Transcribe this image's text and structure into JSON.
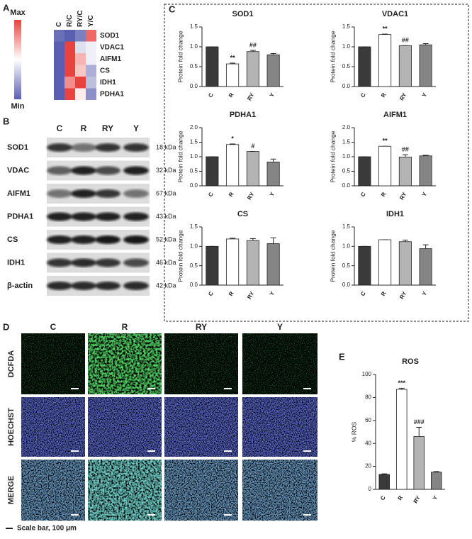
{
  "panels": [
    "A",
    "B",
    "C",
    "D",
    "E"
  ],
  "heatmap": {
    "columns": [
      "C",
      "R/C",
      "RY/C",
      "Y/C"
    ],
    "rows": [
      "SOD1",
      "VDAC1",
      "AIFM1",
      "CS",
      "IDH1",
      "PDHA1"
    ],
    "scale_max": "Max",
    "scale_min": "Min",
    "values": [
      [
        -0.9,
        -1,
        -0.8,
        0.8
      ],
      [
        -1,
        1,
        -0.2,
        -0.1
      ],
      [
        -1,
        1,
        0.4,
        -0.1
      ],
      [
        -1,
        1,
        0.3,
        -0.5
      ],
      [
        -1,
        0.6,
        1,
        -0.4
      ],
      [
        -1,
        1,
        0.1,
        -0.7
      ]
    ]
  },
  "blot": {
    "columns": [
      "C",
      "R",
      "RY",
      "Y"
    ],
    "rows": [
      {
        "name": "SOD1",
        "size": "18 kDa"
      },
      {
        "name": "VDAC",
        "size": "32 kDa"
      },
      {
        "name": "AIFM1",
        "size": "67 kDa"
      },
      {
        "name": "PDHA1",
        "size": "43 kDa"
      },
      {
        "name": "CS",
        "size": "52 kDa"
      },
      {
        "name": "IDH1",
        "size": "46 kDa"
      },
      {
        "name": "β-actin",
        "size": "42 kDa"
      }
    ]
  },
  "chart_data": [
    {
      "type": "bar",
      "title": "SOD1",
      "ylabel": "Protein fold change",
      "categories": [
        "C",
        "R",
        "RY",
        "Y"
      ],
      "values": [
        1.0,
        0.57,
        0.88,
        0.8
      ],
      "errors": [
        0,
        0.02,
        0.03,
        0.03
      ],
      "colors": [
        "#3a3a3a",
        "#ffffff",
        "#b4b4b4",
        "#858585"
      ],
      "annotations": [
        {
          "category": "R",
          "text": "**"
        },
        {
          "category": "RY",
          "text": "##"
        }
      ],
      "ylim": [
        0,
        1.5
      ],
      "yticks": [
        {
          "value": 0,
          "label": "0.0"
        },
        0.5,
        {
          "value": 1,
          "label": "1.0"
        },
        1.5
      ]
    },
    {
      "type": "bar",
      "title": "VDAC1",
      "ylabel": "Protein fold change",
      "categories": [
        "C",
        "R",
        "RY",
        "Y"
      ],
      "values": [
        1.0,
        1.31,
        1.03,
        1.05
      ],
      "errors": [
        0,
        0.01,
        0,
        0.03
      ],
      "colors": [
        "#3a3a3a",
        "#ffffff",
        "#b4b4b4",
        "#858585"
      ],
      "annotations": [
        {
          "category": "R",
          "text": "**"
        },
        {
          "category": "RY",
          "text": "##"
        }
      ],
      "ylim": [
        0,
        1.5
      ],
      "yticks": [
        {
          "value": 0,
          "label": "0.0"
        },
        0.5,
        {
          "value": 1,
          "label": "1.0"
        },
        1.5
      ]
    },
    {
      "type": "bar",
      "title": "PDHA1",
      "ylabel": "Protein fold change",
      "categories": [
        "C",
        "R",
        "RY",
        "Y"
      ],
      "values": [
        1.0,
        1.42,
        1.18,
        0.82
      ],
      "errors": [
        0,
        0.02,
        0,
        0.1
      ],
      "colors": [
        "#3a3a3a",
        "#ffffff",
        "#b4b4b4",
        "#858585"
      ],
      "annotations": [
        {
          "category": "R",
          "text": "*"
        },
        {
          "category": "RY",
          "text": "#"
        }
      ],
      "ylim": [
        0,
        2
      ],
      "yticks": [
        {
          "value": 0,
          "label": "0.0"
        },
        0.5,
        {
          "value": 1,
          "label": "1.0"
        },
        1.5,
        {
          "value": 2,
          "label": "2.0"
        }
      ]
    },
    {
      "type": "bar",
      "title": "AIFM1",
      "ylabel": "Protein fold change",
      "categories": [
        "C",
        "R",
        "RY",
        "Y"
      ],
      "values": [
        1.0,
        1.36,
        0.99,
        1.03
      ],
      "errors": [
        0,
        0,
        0.08,
        0.02
      ],
      "colors": [
        "#3a3a3a",
        "#ffffff",
        "#b4b4b4",
        "#858585"
      ],
      "annotations": [
        {
          "category": "R",
          "text": "**"
        },
        {
          "category": "RY",
          "text": "##"
        }
      ],
      "ylim": [
        0,
        2
      ],
      "yticks": [
        {
          "value": 0,
          "label": "0.0"
        },
        0.5,
        {
          "value": 1,
          "label": "1.0"
        },
        1.5,
        {
          "value": 2,
          "label": "2.0"
        }
      ]
    },
    {
      "type": "bar",
      "title": "CS",
      "ylabel": "Protein fold change",
      "categories": [
        "C",
        "R",
        "RY",
        "Y"
      ],
      "values": [
        1.0,
        1.19,
        1.15,
        1.07
      ],
      "errors": [
        0,
        0.02,
        0.05,
        0.15
      ],
      "colors": [
        "#3a3a3a",
        "#ffffff",
        "#b4b4b4",
        "#858585"
      ],
      "ylim": [
        0,
        1.5
      ],
      "yticks": [
        {
          "value": 0,
          "label": "0.0"
        },
        0.5,
        {
          "value": 1,
          "label": "1.0"
        },
        1.5
      ]
    },
    {
      "type": "bar",
      "title": "IDH1",
      "ylabel": "Protein fold change",
      "categories": [
        "C",
        "R",
        "RY",
        "Y"
      ],
      "values": [
        1.0,
        1.17,
        1.12,
        0.94
      ],
      "errors": [
        0,
        0,
        0.04,
        0.1
      ],
      "colors": [
        "#3a3a3a",
        "#ffffff",
        "#b4b4b4",
        "#858585"
      ],
      "ylim": [
        0,
        1.5
      ],
      "yticks": [
        {
          "value": 0,
          "label": "0.0"
        },
        0.5,
        {
          "value": 1,
          "label": "1.0"
        },
        1.5
      ]
    },
    {
      "type": "bar",
      "title": "ROS",
      "ylabel": "% ROS",
      "categories": [
        "C",
        "R",
        "RY",
        "Y"
      ],
      "values": [
        13,
        87,
        46,
        15
      ],
      "errors": [
        0.5,
        1,
        8,
        0.5
      ],
      "colors": [
        "#3a3a3a",
        "#ffffff",
        "#b4b4b4",
        "#858585"
      ],
      "annotations": [
        {
          "category": "R",
          "text": "***"
        },
        {
          "category": "RY",
          "text": "###"
        }
      ],
      "ylim": [
        0,
        100
      ],
      "yticks": [
        0,
        20,
        40,
        60,
        80,
        100
      ]
    }
  ],
  "microscopy": {
    "columns": [
      "C",
      "R",
      "RY",
      "Y"
    ],
    "rows": [
      "DCFDA",
      "HOECHST",
      "MERGE"
    ],
    "scale_bar": "Scale bar, 100 μm"
  }
}
